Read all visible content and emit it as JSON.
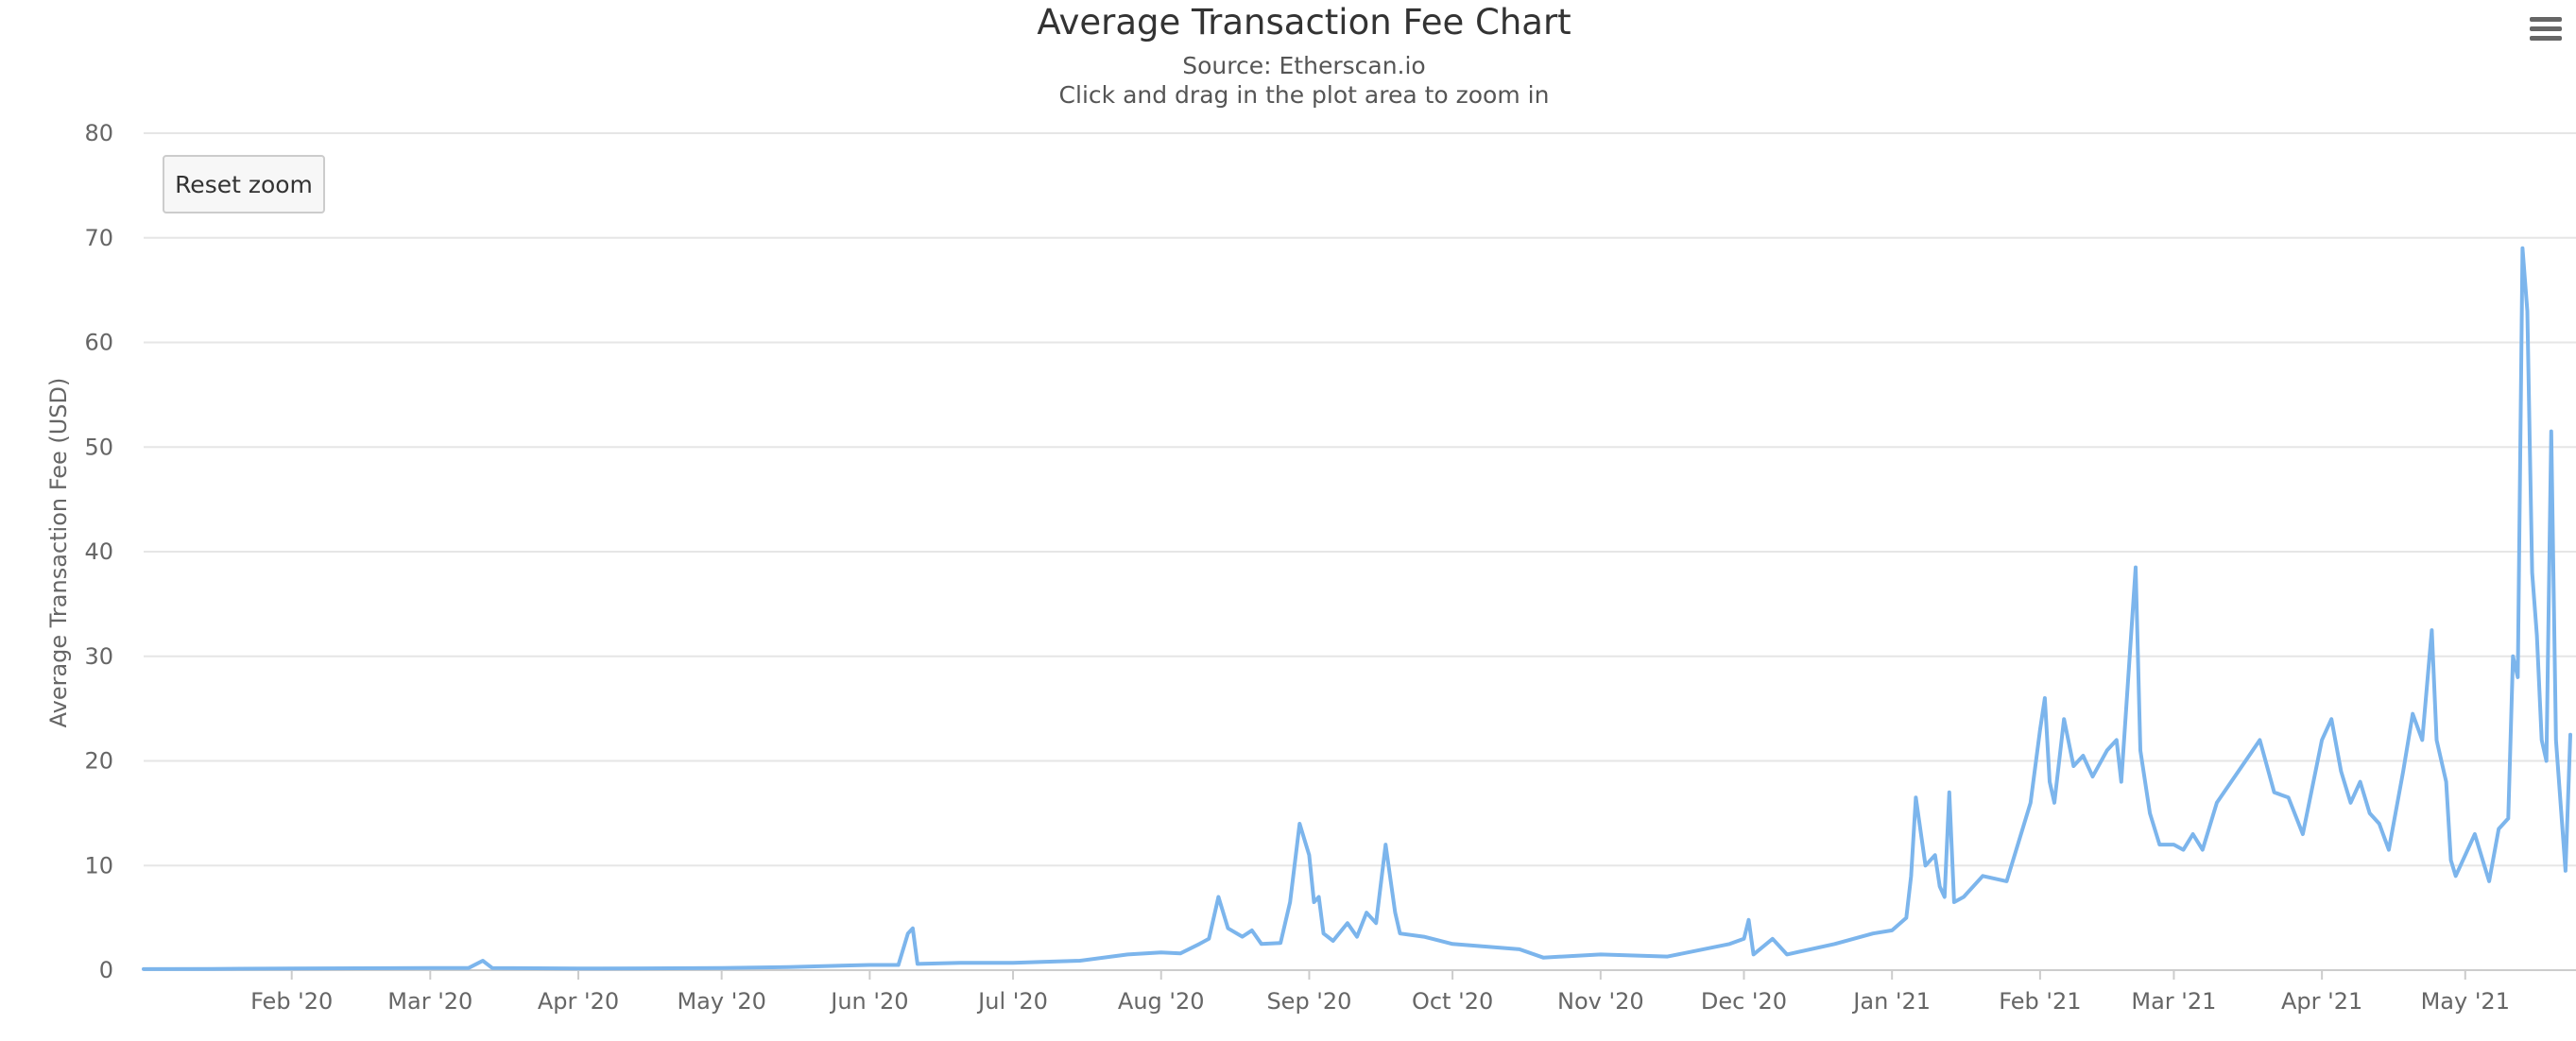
{
  "chart": {
    "title": "Average Transaction Fee Chart",
    "subtitle_source": "Source: Etherscan.io",
    "subtitle_hint": "Click and drag in the plot area to zoom in",
    "reset_zoom_label": "Reset zoom",
    "menu_icon": "hamburger-menu-icon"
  },
  "colors": {
    "series_line": "#7cb5ec",
    "grid": "#e6e6e6",
    "axis_labels": "#666666"
  },
  "chart_data": {
    "type": "line",
    "title": "Average Transaction Fee Chart",
    "subtitle": "Source: Etherscan.io",
    "xlabel": "",
    "ylabel": "Average Transaction Fee (USD)",
    "ylim": [
      0,
      80
    ],
    "yticks": [
      0,
      10,
      20,
      30,
      40,
      50,
      60,
      70,
      80
    ],
    "xlim": [
      "2020-01-01",
      "2021-05-23"
    ],
    "xtick_labels": [
      "Feb '20",
      "Mar '20",
      "Apr '20",
      "May '20",
      "Jun '20",
      "Jul '20",
      "Aug '20",
      "Sep '20",
      "Oct '20",
      "Nov '20",
      "Dec '20",
      "Jan '21",
      "Feb '21",
      "Mar '21",
      "Apr '21",
      "May '21"
    ],
    "xtick_dates": [
      "2020-02-01",
      "2020-03-01",
      "2020-04-01",
      "2020-05-01",
      "2020-06-01",
      "2020-07-01",
      "2020-08-01",
      "2020-09-01",
      "2020-10-01",
      "2020-11-01",
      "2020-12-01",
      "2021-01-01",
      "2021-02-01",
      "2021-03-01",
      "2021-04-01",
      "2021-05-01"
    ],
    "grid": true,
    "legend": "none",
    "series": [
      {
        "points": [
          [
            "2020-01-01",
            0.1
          ],
          [
            "2020-01-15",
            0.12
          ],
          [
            "2020-02-01",
            0.15
          ],
          [
            "2020-02-15",
            0.18
          ],
          [
            "2020-03-01",
            0.2
          ],
          [
            "2020-03-09",
            0.2
          ],
          [
            "2020-03-12",
            0.9
          ],
          [
            "2020-03-14",
            0.2
          ],
          [
            "2020-04-01",
            0.15
          ],
          [
            "2020-04-15",
            0.17
          ],
          [
            "2020-05-01",
            0.2
          ],
          [
            "2020-05-15",
            0.3
          ],
          [
            "2020-06-01",
            0.5
          ],
          [
            "2020-06-07",
            0.5
          ],
          [
            "2020-06-09",
            3.5
          ],
          [
            "2020-06-10",
            4.0
          ],
          [
            "2020-06-11",
            0.6
          ],
          [
            "2020-06-20",
            0.7
          ],
          [
            "2020-07-01",
            0.7
          ],
          [
            "2020-07-15",
            0.9
          ],
          [
            "2020-07-25",
            1.5
          ],
          [
            "2020-08-01",
            1.7
          ],
          [
            "2020-08-05",
            1.6
          ],
          [
            "2020-08-09",
            2.5
          ],
          [
            "2020-08-11",
            3.0
          ],
          [
            "2020-08-13",
            7.0
          ],
          [
            "2020-08-15",
            4.0
          ],
          [
            "2020-08-18",
            3.2
          ],
          [
            "2020-08-20",
            3.8
          ],
          [
            "2020-08-22",
            2.5
          ],
          [
            "2020-08-26",
            2.6
          ],
          [
            "2020-08-28",
            6.5
          ],
          [
            "2020-08-30",
            14.0
          ],
          [
            "2020-09-01",
            11.0
          ],
          [
            "2020-09-02",
            6.5
          ],
          [
            "2020-09-03",
            7.0
          ],
          [
            "2020-09-04",
            3.5
          ],
          [
            "2020-09-06",
            2.8
          ],
          [
            "2020-09-09",
            4.5
          ],
          [
            "2020-09-11",
            3.2
          ],
          [
            "2020-09-13",
            5.5
          ],
          [
            "2020-09-15",
            4.5
          ],
          [
            "2020-09-17",
            12.0
          ],
          [
            "2020-09-19",
            5.5
          ],
          [
            "2020-09-20",
            3.5
          ],
          [
            "2020-09-25",
            3.2
          ],
          [
            "2020-10-01",
            2.5
          ],
          [
            "2020-10-15",
            2.0
          ],
          [
            "2020-10-20",
            1.2
          ],
          [
            "2020-11-01",
            1.5
          ],
          [
            "2020-11-15",
            1.3
          ],
          [
            "2020-11-28",
            2.5
          ],
          [
            "2020-12-01",
            3.0
          ],
          [
            "2020-12-02",
            4.8
          ],
          [
            "2020-12-03",
            1.5
          ],
          [
            "2020-12-07",
            3.0
          ],
          [
            "2020-12-10",
            1.5
          ],
          [
            "2020-12-20",
            2.5
          ],
          [
            "2020-12-28",
            3.5
          ],
          [
            "2021-01-01",
            3.8
          ],
          [
            "2021-01-04",
            5.0
          ],
          [
            "2021-01-05",
            9.0
          ],
          [
            "2021-01-06",
            16.5
          ],
          [
            "2021-01-08",
            10.0
          ],
          [
            "2021-01-10",
            11.0
          ],
          [
            "2021-01-11",
            8.0
          ],
          [
            "2021-01-12",
            7.0
          ],
          [
            "2021-01-13",
            17.0
          ],
          [
            "2021-01-14",
            6.5
          ],
          [
            "2021-01-16",
            7.0
          ],
          [
            "2021-01-20",
            9.0
          ],
          [
            "2021-01-25",
            8.5
          ],
          [
            "2021-01-30",
            16.0
          ],
          [
            "2021-02-01",
            23.0
          ],
          [
            "2021-02-02",
            26.0
          ],
          [
            "2021-02-03",
            18.0
          ],
          [
            "2021-02-04",
            16.0
          ],
          [
            "2021-02-06",
            24.0
          ],
          [
            "2021-02-08",
            19.5
          ],
          [
            "2021-02-10",
            20.5
          ],
          [
            "2021-02-12",
            18.5
          ],
          [
            "2021-02-15",
            21.0
          ],
          [
            "2021-02-17",
            22.0
          ],
          [
            "2021-02-18",
            18.0
          ],
          [
            "2021-02-21",
            38.5
          ],
          [
            "2021-02-22",
            21.0
          ],
          [
            "2021-02-24",
            15.0
          ],
          [
            "2021-02-26",
            12.0
          ],
          [
            "2021-03-01",
            12.0
          ],
          [
            "2021-03-03",
            11.5
          ],
          [
            "2021-03-05",
            13.0
          ],
          [
            "2021-03-07",
            11.5
          ],
          [
            "2021-03-10",
            16.0
          ],
          [
            "2021-03-13",
            18.0
          ],
          [
            "2021-03-16",
            20.0
          ],
          [
            "2021-03-19",
            22.0
          ],
          [
            "2021-03-22",
            17.0
          ],
          [
            "2021-03-25",
            16.5
          ],
          [
            "2021-03-28",
            13.0
          ],
          [
            "2021-04-01",
            22.0
          ],
          [
            "2021-04-03",
            24.0
          ],
          [
            "2021-04-05",
            19.0
          ],
          [
            "2021-04-07",
            16.0
          ],
          [
            "2021-04-09",
            18.0
          ],
          [
            "2021-04-11",
            15.0
          ],
          [
            "2021-04-13",
            14.0
          ],
          [
            "2021-04-15",
            11.5
          ],
          [
            "2021-04-18",
            19.0
          ],
          [
            "2021-04-20",
            24.5
          ],
          [
            "2021-04-22",
            22.0
          ],
          [
            "2021-04-24",
            32.5
          ],
          [
            "2021-04-25",
            22.0
          ],
          [
            "2021-04-27",
            18.0
          ],
          [
            "2021-04-28",
            10.5
          ],
          [
            "2021-04-29",
            9.0
          ],
          [
            "2021-05-01",
            11.0
          ],
          [
            "2021-05-03",
            13.0
          ],
          [
            "2021-05-05",
            10.0
          ],
          [
            "2021-05-06",
            8.5
          ],
          [
            "2021-05-08",
            13.5
          ],
          [
            "2021-05-10",
            14.5
          ],
          [
            "2021-05-11",
            30.0
          ],
          [
            "2021-05-12",
            28.0
          ],
          [
            "2021-05-13",
            69.0
          ],
          [
            "2021-05-14",
            63.0
          ],
          [
            "2021-05-15",
            38.0
          ],
          [
            "2021-05-16",
            32.0
          ],
          [
            "2021-05-17",
            22.0
          ],
          [
            "2021-05-18",
            20.0
          ],
          [
            "2021-05-19",
            51.5
          ],
          [
            "2021-05-20",
            22.0
          ],
          [
            "2021-05-22",
            9.5
          ],
          [
            "2021-05-23",
            22.5
          ]
        ]
      }
    ]
  }
}
